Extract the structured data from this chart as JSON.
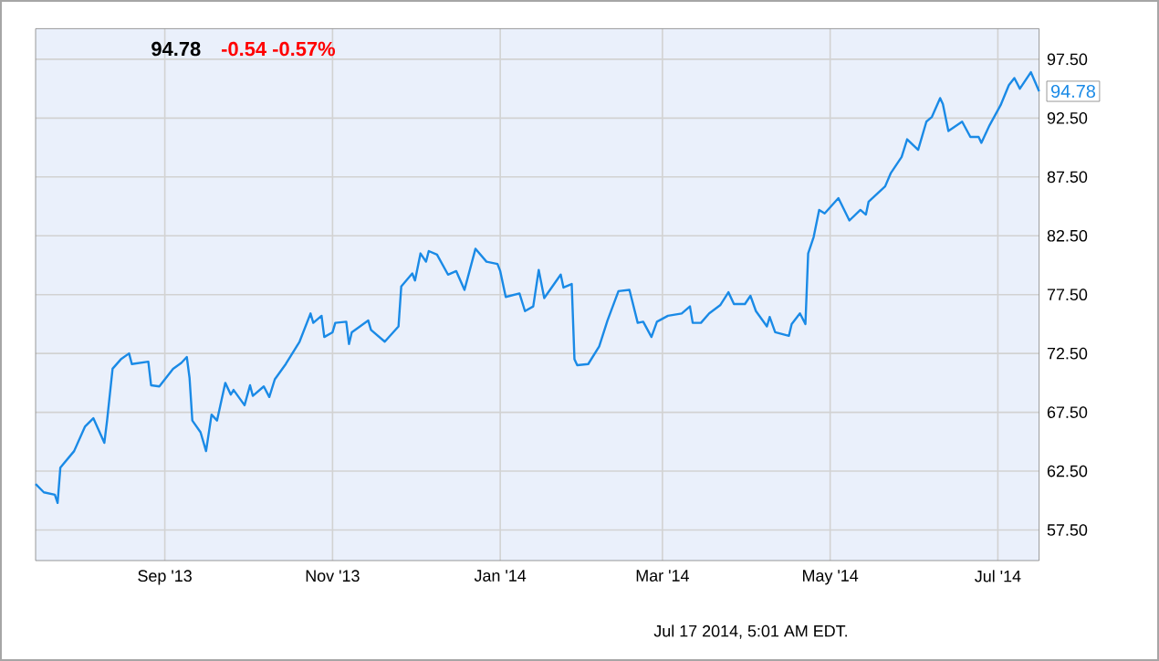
{
  "chart_data": {
    "type": "line",
    "title": "94.78",
    "subtitle": "-0.54  -0.57%",
    "color": "#1a8ae6",
    "grid": true,
    "marker": "none",
    "line_style": "solid",
    "xlim": [
      "2013-07-16",
      "2014-07-16"
    ],
    "xticks": [
      {
        "value": "2013-09-01",
        "label": "Sep '13"
      },
      {
        "value": "2013-11-01",
        "label": "Nov '13"
      },
      {
        "value": "2014-01-01",
        "label": "Jan '14"
      },
      {
        "value": "2014-03-01",
        "label": "Mar '14"
      },
      {
        "value": "2014-05-01",
        "label": "May '14"
      },
      {
        "value": "2014-07-01",
        "label": "Jul '14"
      }
    ],
    "ylim": [
      54.9,
      100.1
    ],
    "yticks": [
      {
        "value": 57.5,
        "label": "57.50"
      },
      {
        "value": 62.5,
        "label": "62.50"
      },
      {
        "value": 67.5,
        "label": "67.50"
      },
      {
        "value": 72.5,
        "label": "72.50"
      },
      {
        "value": 77.5,
        "label": "77.50"
      },
      {
        "value": 82.5,
        "label": "82.50"
      },
      {
        "value": 87.5,
        "label": "87.50"
      },
      {
        "value": 92.5,
        "label": "92.50"
      },
      {
        "value": 97.5,
        "label": "97.50"
      }
    ],
    "x": [
      "2013-07-16",
      "2013-07-19",
      "2013-07-23",
      "2013-07-24",
      "2013-07-25",
      "2013-07-30",
      "2013-08-03",
      "2013-08-06",
      "2013-08-10",
      "2013-08-11",
      "2013-08-13",
      "2013-08-16",
      "2013-08-19",
      "2013-08-20",
      "2013-08-26",
      "2013-08-27",
      "2013-08-30",
      "2013-09-04",
      "2013-09-07",
      "2013-09-09",
      "2013-09-10",
      "2013-09-11",
      "2013-09-14",
      "2013-09-16",
      "2013-09-18",
      "2013-09-20",
      "2013-09-23",
      "2013-09-25",
      "2013-09-26",
      "2013-09-30",
      "2013-10-02",
      "2013-10-03",
      "2013-10-07",
      "2013-10-09",
      "2013-10-11",
      "2013-10-15",
      "2013-10-20",
      "2013-10-24",
      "2013-10-25",
      "2013-10-28",
      "2013-10-29",
      "2013-11-01",
      "2013-11-02",
      "2013-11-06",
      "2013-11-07",
      "2013-11-08",
      "2013-11-14",
      "2013-11-15",
      "2013-11-20",
      "2013-11-25",
      "2013-11-26",
      "2013-11-30",
      "2013-12-01",
      "2013-12-03",
      "2013-12-05",
      "2013-12-06",
      "2013-12-09",
      "2013-12-13",
      "2013-12-16",
      "2013-12-19",
      "2013-12-23",
      "2013-12-27",
      "2013-12-31",
      "2014-01-01",
      "2014-01-03",
      "2014-01-08",
      "2014-01-10",
      "2014-01-13",
      "2014-01-15",
      "2014-01-17",
      "2014-01-23",
      "2014-01-24",
      "2014-01-27",
      "2014-01-28",
      "2014-01-29",
      "2014-02-02",
      "2014-02-06",
      "2014-02-09",
      "2014-02-13",
      "2014-02-17",
      "2014-02-20",
      "2014-02-22",
      "2014-02-25",
      "2014-02-27",
      "2014-03-03",
      "2014-03-08",
      "2014-03-11",
      "2014-03-12",
      "2014-03-15",
      "2014-03-18",
      "2014-03-22",
      "2014-03-25",
      "2014-03-27",
      "2014-03-31",
      "2014-04-02",
      "2014-04-04",
      "2014-04-08",
      "2014-04-09",
      "2014-04-11",
      "2014-04-16",
      "2014-04-17",
      "2014-04-20",
      "2014-04-22",
      "2014-04-23",
      "2014-04-25",
      "2014-04-27",
      "2014-04-29",
      "2014-05-04",
      "2014-05-08",
      "2014-05-12",
      "2014-05-14",
      "2014-05-15",
      "2014-05-21",
      "2014-05-23",
      "2014-05-27",
      "2014-05-29",
      "2014-06-02",
      "2014-06-05",
      "2014-06-07",
      "2014-06-10",
      "2014-06-11",
      "2014-06-13",
      "2014-06-18",
      "2014-06-21",
      "2014-06-24",
      "2014-06-25",
      "2014-06-28",
      "2014-07-02",
      "2014-07-05",
      "2014-07-07",
      "2014-07-09",
      "2014-07-13",
      "2014-07-16"
    ],
    "values": [
      61.4,
      60.7,
      60.5,
      59.8,
      62.8,
      64.2,
      66.3,
      67.0,
      64.9,
      66.8,
      71.2,
      72.0,
      72.5,
      71.6,
      71.8,
      69.8,
      69.7,
      71.2,
      71.7,
      72.2,
      70.4,
      66.8,
      65.8,
      64.2,
      67.3,
      66.8,
      70.0,
      69.0,
      69.4,
      68.1,
      69.8,
      68.9,
      69.7,
      68.8,
      70.3,
      71.6,
      73.5,
      75.9,
      75.1,
      75.7,
      73.9,
      74.3,
      75.1,
      75.2,
      73.3,
      74.3,
      75.3,
      74.5,
      73.5,
      74.8,
      78.2,
      79.3,
      78.7,
      81.0,
      80.3,
      81.2,
      80.9,
      79.2,
      79.5,
      77.9,
      81.4,
      80.3,
      80.1,
      79.5,
      77.3,
      77.6,
      76.1,
      76.5,
      79.6,
      77.2,
      79.2,
      78.1,
      78.4,
      72.0,
      71.5,
      71.6,
      73.1,
      75.3,
      77.8,
      77.9,
      75.1,
      75.2,
      73.9,
      75.2,
      75.7,
      75.9,
      76.5,
      75.1,
      75.1,
      75.9,
      76.6,
      77.7,
      76.7,
      76.7,
      77.4,
      76.1,
      74.8,
      75.6,
      74.3,
      74.0,
      75.0,
      75.9,
      75.0,
      81.0,
      82.4,
      84.7,
      84.4,
      85.7,
      83.8,
      84.7,
      84.3,
      85.4,
      86.7,
      87.8,
      89.2,
      90.7,
      89.8,
      92.2,
      92.6,
      94.2,
      93.7,
      91.4,
      92.2,
      90.9,
      90.9,
      90.4,
      91.9,
      93.6,
      95.3,
      95.9,
      95.0,
      96.4,
      94.78
    ],
    "annotations": [
      {
        "text": "94.78",
        "x": "2014-07-16",
        "y": 94.78
      },
      "Jul 17 2014, 5:01 AM EDT."
    ]
  }
}
